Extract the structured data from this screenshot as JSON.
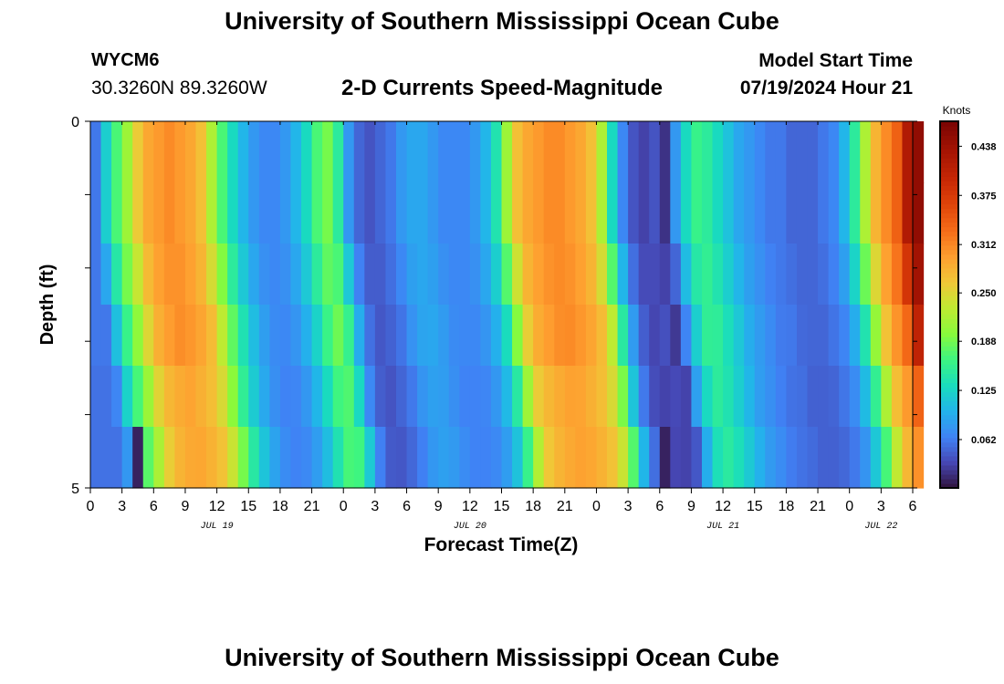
{
  "header": {
    "title": "University of Southern Mississippi Ocean Cube",
    "station": "WYCM6",
    "coords": "30.3260N  89.3260W",
    "subtitle": "2-D Currents Speed-Magnitude",
    "start_label": "Model Start Time",
    "start_value": "07/19/2024 Hour 21"
  },
  "footer": {
    "title": "University of Southern Mississippi Ocean Cube"
  },
  "chart_data": {
    "type": "heatmap",
    "title": "2-D Currents Speed-Magnitude",
    "xlabel": "Forecast Time(Z)",
    "ylabel": "Depth (ft)",
    "x_hours": [
      0,
      78
    ],
    "y_range": [
      0,
      5
    ],
    "y_ticks": [
      "0",
      "5"
    ],
    "x_tick_labels": [
      "0",
      "3",
      "6",
      "9",
      "12",
      "15",
      "18",
      "21",
      "0",
      "3",
      "6",
      "9",
      "12",
      "15",
      "18",
      "21",
      "0",
      "3",
      "6",
      "9",
      "12",
      "15",
      "18",
      "21",
      "0",
      "3",
      "6"
    ],
    "day_labels": [
      {
        "label": "JUL 19",
        "hour": 12
      },
      {
        "label": "JUL 20",
        "hour": 36
      },
      {
        "label": "JUL 21",
        "hour": 60
      },
      {
        "label": "JUL 22",
        "hour": 75
      }
    ],
    "colorbar": {
      "unit": "Knots",
      "min": 0.0,
      "max": 0.47,
      "tick_labels": [
        "0.062",
        "0.125",
        "0.188",
        "0.250",
        "0.312",
        "0.375",
        "0.438"
      ],
      "tick_values": [
        0.062,
        0.125,
        0.188,
        0.25,
        0.312,
        0.375,
        0.438
      ]
    },
    "speed_profile_knots": [
      0.06,
      0.12,
      0.17,
      0.21,
      0.26,
      0.29,
      0.3,
      0.31,
      0.3,
      0.29,
      0.27,
      0.22,
      0.17,
      0.13,
      0.1,
      0.08,
      0.07,
      0.07,
      0.08,
      0.1,
      0.13,
      0.17,
      0.19,
      0.15,
      0.08,
      0.05,
      0.04,
      0.05,
      0.06,
      0.08,
      0.09,
      0.09,
      0.08,
      0.07,
      0.07,
      0.07,
      0.08,
      0.1,
      0.14,
      0.21,
      0.27,
      0.29,
      0.3,
      0.31,
      0.31,
      0.3,
      0.29,
      0.27,
      0.22,
      0.13,
      0.07,
      0.04,
      0.03,
      0.04,
      0.02,
      0.08,
      0.13,
      0.16,
      0.15,
      0.13,
      0.11,
      0.09,
      0.08,
      0.07,
      0.06,
      0.06,
      0.05,
      0.05,
      0.05,
      0.06,
      0.07,
      0.1,
      0.15,
      0.22,
      0.28,
      0.31,
      0.34,
      0.42,
      0.45
    ],
    "depth_layers": 6,
    "layer_shift_hours": [
      0,
      0,
      0.5,
      1.2,
      1.8,
      2.6
    ]
  }
}
